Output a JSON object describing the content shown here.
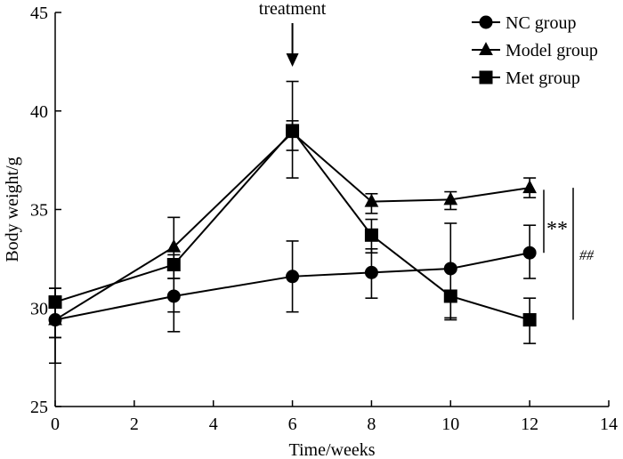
{
  "chart_data": {
    "type": "line",
    "title": "",
    "xlabel": "Time/weeks",
    "ylabel": "Body weight/g",
    "xlim": [
      0,
      14
    ],
    "ylim": [
      25,
      45
    ],
    "xticks": [
      0,
      2,
      4,
      6,
      8,
      10,
      12,
      14
    ],
    "yticks": [
      25,
      30,
      35,
      40,
      45
    ],
    "xtick_labels": [
      "0",
      "2",
      "4",
      "6",
      "8",
      "10",
      "12",
      "14"
    ],
    "ytick_labels": [
      "25",
      "30",
      "35",
      "40",
      "45"
    ],
    "grid": false,
    "legend_position": "top-right",
    "series": [
      {
        "name": "NC group",
        "marker": "circle",
        "x": [
          0,
          3,
          6,
          8,
          10,
          12
        ],
        "values": [
          29.4,
          30.6,
          31.6,
          31.8,
          32.0,
          32.8
        ],
        "err_low": [
          27.2,
          28.8,
          29.8,
          30.5,
          29.5,
          31.5
        ],
        "err_high": [
          31.0,
          31.5,
          33.4,
          33.0,
          34.3,
          34.2
        ]
      },
      {
        "name": "Model group",
        "marker": "triangle",
        "x": [
          0,
          3,
          6,
          8,
          10,
          12
        ],
        "values": [
          29.4,
          33.1,
          38.9,
          35.4,
          35.5,
          36.1
        ],
        "err_low": [
          28.5,
          31.5,
          36.6,
          34.8,
          35.0,
          35.6
        ],
        "err_high": [
          30.6,
          34.6,
          41.5,
          35.8,
          35.9,
          36.6
        ]
      },
      {
        "name": "Met group",
        "marker": "square",
        "x": [
          0,
          3,
          6,
          8,
          10,
          12
        ],
        "values": [
          30.3,
          32.2,
          39.0,
          33.7,
          30.6,
          29.4
        ],
        "err_low": [
          28.5,
          29.8,
          38.0,
          32.8,
          29.4,
          28.2
        ],
        "err_high": [
          31.0,
          32.7,
          39.5,
          34.5,
          30.9,
          30.5
        ]
      }
    ],
    "annotations": {
      "treatment_label": "treatment",
      "treatment_x": 6,
      "sig_model_nc": "**",
      "sig_met_model": "##"
    }
  }
}
